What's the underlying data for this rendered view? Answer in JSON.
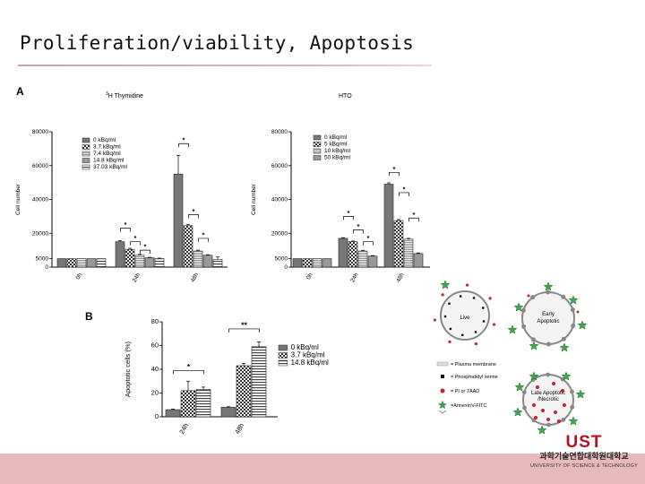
{
  "slide": {
    "title": "Proliferation/viability, Apoptosis",
    "panel_a_label": "A",
    "panel_b_label": "B"
  },
  "colors": {
    "footer": "#e8b9bb",
    "logo_red": "#b3111f",
    "green_star": "#3ea84a",
    "red_dot": "#c62033"
  },
  "chart_data": [
    {
      "type": "bar",
      "title_prefix": "3",
      "title": "H Thymidine",
      "ylabel": "Cell number",
      "xlabel": "",
      "categories": [
        "0h",
        "24h",
        "48h"
      ],
      "yticks": [
        0,
        5000,
        20000,
        40000,
        60000,
        80000
      ],
      "ylim": [
        0,
        80000
      ],
      "legend_position": "top-left",
      "series": [
        {
          "name": "0 kBq/ml",
          "values": [
            5000,
            15000,
            55000
          ],
          "errors": [
            0,
            600,
            11000
          ]
        },
        {
          "name": "3.7 kBq/ml",
          "values": [
            5000,
            10500,
            24500
          ],
          "errors": [
            0,
            600,
            800
          ]
        },
        {
          "name": "7.4 kBq/ml",
          "values": [
            5000,
            7000,
            9500
          ],
          "errors": [
            0,
            500,
            500
          ]
        },
        {
          "name": "14.8 kBq/ml",
          "values": [
            5000,
            5500,
            7000
          ],
          "errors": [
            0,
            300,
            300
          ]
        },
        {
          "name": "37.03 kBq/ml",
          "values": [
            5000,
            5000,
            4500
          ],
          "errors": [
            0,
            300,
            1500
          ]
        }
      ],
      "annotations": [
        "*",
        "*",
        "*",
        "*",
        "*",
        "*"
      ]
    },
    {
      "type": "bar",
      "title": "HTO",
      "ylabel": "Cell number",
      "xlabel": "",
      "categories": [
        "0h",
        "24h",
        "48h"
      ],
      "yticks": [
        0,
        5000,
        20000,
        40000,
        60000,
        80000
      ],
      "ylim": [
        0,
        80000
      ],
      "legend_position": "top-left",
      "series": [
        {
          "name": "0 kBq/ml",
          "values": [
            5000,
            17000,
            49000
          ],
          "errors": [
            0,
            400,
            800
          ]
        },
        {
          "name": "5 kBq/ml",
          "values": [
            5000,
            15000,
            27500
          ],
          "errors": [
            0,
            400,
            600
          ]
        },
        {
          "name": "10 kBq/ml",
          "values": [
            5000,
            9500,
            16500
          ],
          "errors": [
            0,
            400,
            500
          ]
        },
        {
          "name": "50 kBq/ml",
          "values": [
            5000,
            6500,
            8000
          ],
          "errors": [
            0,
            300,
            400
          ]
        }
      ],
      "annotations": [
        "*",
        "*",
        "*",
        "*",
        "*",
        "*"
      ]
    },
    {
      "type": "bar",
      "title": "",
      "ylabel": "Apoptotic cells (%)",
      "xlabel": "",
      "categories": [
        "24h",
        "48h"
      ],
      "yticks": [
        0,
        20,
        40,
        60,
        80
      ],
      "ylim": [
        0,
        80
      ],
      "legend_position": "right",
      "series": [
        {
          "name": "0 kBq/ml",
          "values": [
            6,
            8
          ],
          "errors": [
            0.5,
            0.5
          ]
        },
        {
          "name": "3.7 kBq/ml",
          "values": [
            22,
            43
          ],
          "errors": [
            8,
            2
          ]
        },
        {
          "name": "14.8 kBq/ml",
          "values": [
            23,
            59
          ],
          "errors": [
            2,
            4
          ]
        }
      ],
      "annotations": [
        "*",
        "**"
      ]
    }
  ],
  "diagram": {
    "cells": {
      "live": "Live",
      "early_apoptotic_1": "Early",
      "early_apoptotic_2": "Apoptotic",
      "late_apoptotic_1": "Late Apoptotic",
      "late_apoptotic_2": "/Necrotic"
    },
    "legend": {
      "membrane": "= Plasma membrane",
      "phosphatidyl": "= Phosphatidyl serine",
      "pi": "= PI or 7AAD",
      "annexin": "=AnnexinV-FITC"
    }
  },
  "logo": {
    "main": "UST",
    "korean": "과학기술연합대학원대학교",
    "english": "UNIVERSITY OF SCIENCE & TECHNOLOGY"
  }
}
